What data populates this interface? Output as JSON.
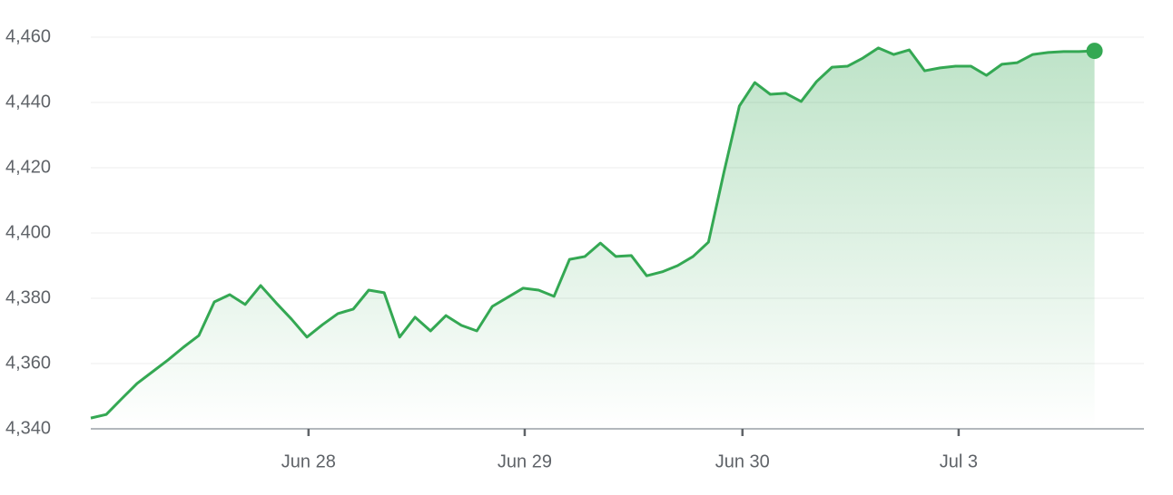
{
  "chart_data": {
    "type": "line",
    "x": [
      0,
      1,
      2,
      3,
      4,
      5,
      6,
      7,
      8,
      9,
      10,
      11,
      12,
      13,
      14,
      15,
      16,
      17,
      18,
      19,
      20,
      21,
      22,
      23,
      24,
      25,
      26,
      27,
      28,
      29,
      30,
      31,
      32,
      33,
      34,
      35,
      36,
      37,
      38,
      39,
      40,
      41,
      42,
      43,
      44,
      45,
      46,
      47,
      48,
      49,
      50,
      51,
      52,
      53,
      54,
      55,
      56,
      57,
      58,
      59,
      60,
      61,
      62,
      63,
      64,
      65
    ],
    "series": [
      {
        "color": "#34a853",
        "values": [
          4343.3,
          4344.4,
          4349.2,
          4353.9,
          4357.5,
          4361.1,
          4365.0,
          4368.6,
          4378.9,
          4381.1,
          4378.1,
          4383.9,
          4378.6,
          4373.6,
          4368.1,
          4371.9,
          4375.3,
          4376.7,
          4382.5,
          4381.7,
          4368.1,
          4374.2,
          4370.0,
          4374.7,
          4371.7,
          4370.0,
          4377.5,
          4380.3,
          4383.1,
          4382.5,
          4380.6,
          4391.9,
          4392.8,
          4396.9,
          4392.8,
          4393.1,
          4386.9,
          4388.1,
          4390.0,
          4392.8,
          4397.2,
          4418.6,
          4438.9,
          4446.1,
          4442.5,
          4442.8,
          4440.3,
          4446.4,
          4450.8,
          4451.1,
          4453.6,
          4456.7,
          4454.7,
          4456.1,
          4449.7,
          4450.6,
          4451.1,
          4451.1,
          4448.3,
          4451.7,
          4452.2,
          4454.7,
          4455.3,
          4455.6,
          4455.6,
          4455.8
        ]
      }
    ],
    "xlim": [
      0,
      68.2
    ],
    "xticks": [
      {
        "value": 14.1,
        "label": "Jun 28"
      },
      {
        "value": 28.1,
        "label": "Jun 29"
      },
      {
        "value": 42.2,
        "label": "Jun 30"
      },
      {
        "value": 56.2,
        "label": "Jul 3"
      }
    ],
    "ylim": [
      4340,
      4460
    ],
    "yticks": [
      {
        "value": 4340,
        "label": "4,340"
      },
      {
        "value": 4360,
        "label": "4,360"
      },
      {
        "value": 4380,
        "label": "4,380"
      },
      {
        "value": 4400,
        "label": "4,400"
      },
      {
        "value": 4420,
        "label": "4,420"
      },
      {
        "value": 4440,
        "label": "4,440"
      },
      {
        "value": 4460,
        "label": "4,460"
      }
    ],
    "grid": true
  }
}
